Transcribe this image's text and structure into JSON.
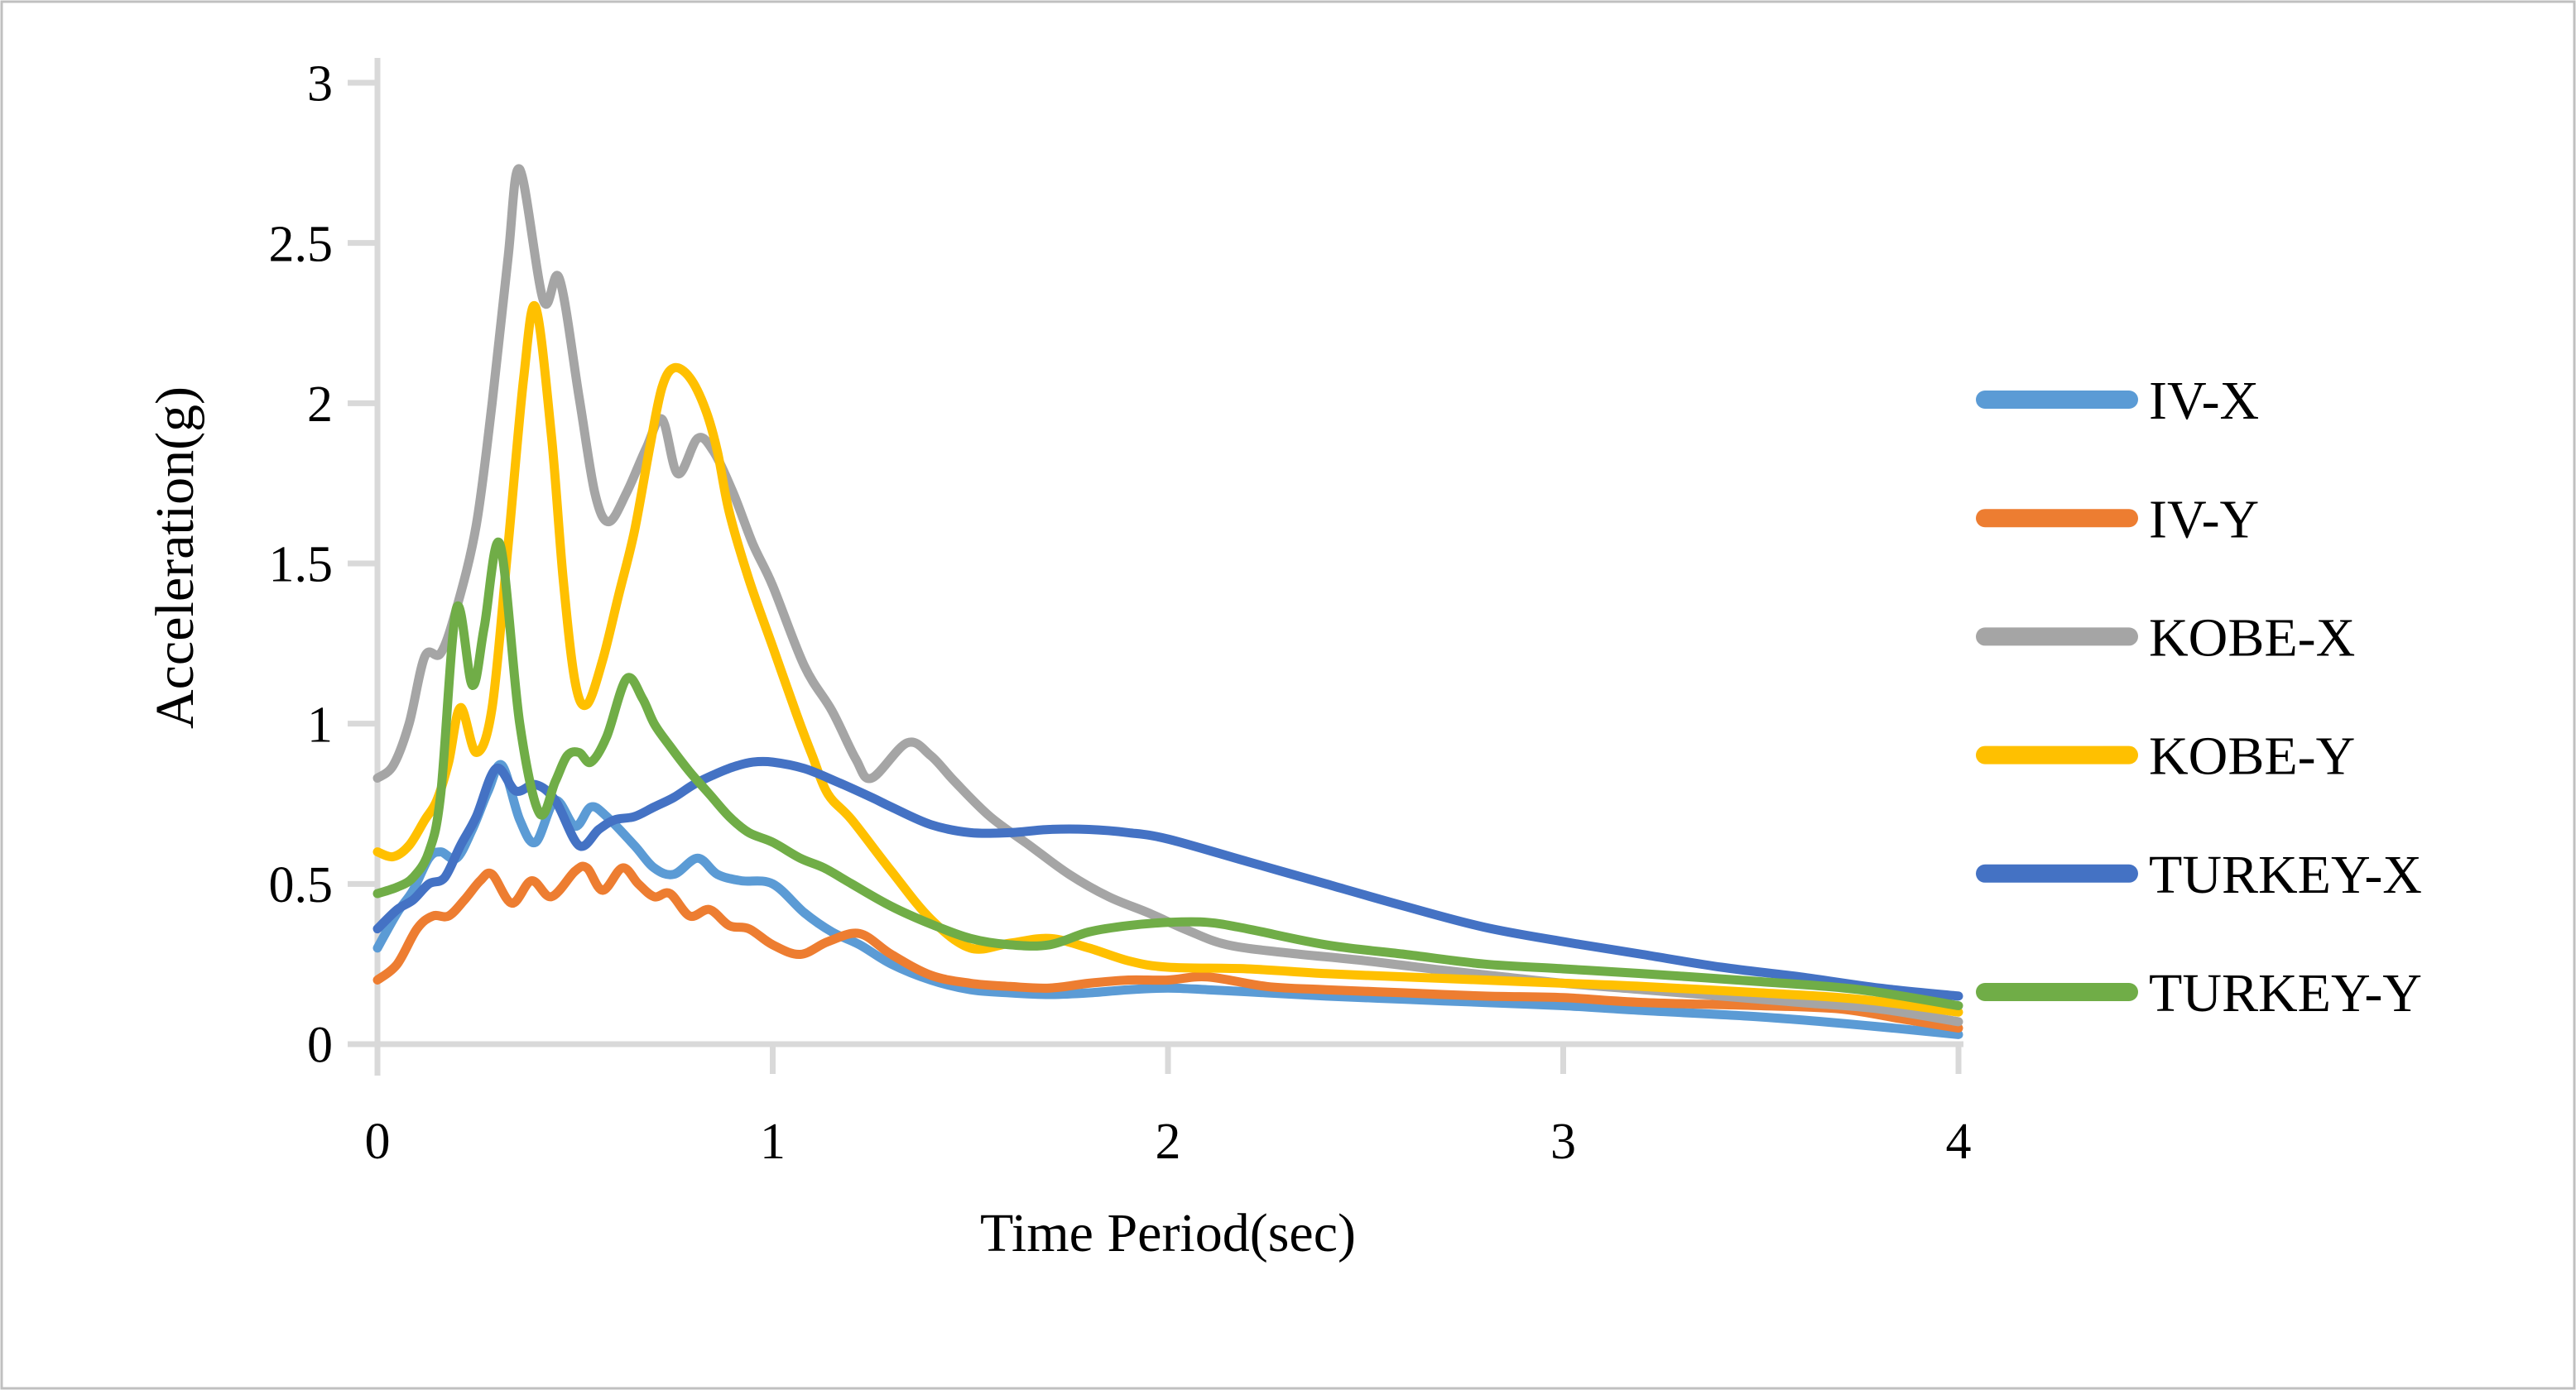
{
  "chart_data": {
    "type": "line",
    "title": "",
    "xlabel": "Time Period(sec)",
    "ylabel": "Acceleration(g)",
    "xlim": [
      0,
      4
    ],
    "ylim": [
      0,
      3
    ],
    "xticks": [
      0,
      1,
      2,
      3,
      4
    ],
    "yticks": [
      0,
      0.5,
      1,
      1.5,
      2,
      2.5,
      3
    ],
    "grid": false,
    "legend_position": "right-middle",
    "axis_color": "#D9D9D9",
    "text_color": "#000000",
    "series": [
      {
        "name": "IV-X",
        "color": "#5B9BD5",
        "points": [
          [
            0,
            0.3
          ],
          [
            0.05,
            0.41
          ],
          [
            0.09,
            0.48
          ],
          [
            0.13,
            0.58
          ],
          [
            0.16,
            0.6
          ],
          [
            0.2,
            0.58
          ],
          [
            0.24,
            0.67
          ],
          [
            0.28,
            0.79
          ],
          [
            0.315,
            0.87
          ],
          [
            0.36,
            0.7
          ],
          [
            0.4,
            0.63
          ],
          [
            0.45,
            0.76
          ],
          [
            0.5,
            0.68
          ],
          [
            0.54,
            0.74
          ],
          [
            0.58,
            0.71
          ],
          [
            0.65,
            0.62
          ],
          [
            0.7,
            0.55
          ],
          [
            0.75,
            0.53
          ],
          [
            0.81,
            0.58
          ],
          [
            0.86,
            0.53
          ],
          [
            0.92,
            0.51
          ],
          [
            1.0,
            0.5
          ],
          [
            1.08,
            0.41
          ],
          [
            1.15,
            0.35
          ],
          [
            1.22,
            0.31
          ],
          [
            1.3,
            0.25
          ],
          [
            1.4,
            0.2
          ],
          [
            1.5,
            0.17
          ],
          [
            1.6,
            0.16
          ],
          [
            1.7,
            0.155
          ],
          [
            1.8,
            0.16
          ],
          [
            1.9,
            0.17
          ],
          [
            2.0,
            0.175
          ],
          [
            2.1,
            0.17
          ],
          [
            2.25,
            0.16
          ],
          [
            2.4,
            0.15
          ],
          [
            2.6,
            0.14
          ],
          [
            2.8,
            0.13
          ],
          [
            3.0,
            0.12
          ],
          [
            3.2,
            0.105
          ],
          [
            3.5,
            0.085
          ],
          [
            3.75,
            0.06
          ],
          [
            4.0,
            0.03
          ]
        ]
      },
      {
        "name": "IV-Y",
        "color": "#ED7D31",
        "points": [
          [
            0,
            0.2
          ],
          [
            0.05,
            0.25
          ],
          [
            0.1,
            0.36
          ],
          [
            0.14,
            0.4
          ],
          [
            0.18,
            0.4
          ],
          [
            0.22,
            0.45
          ],
          [
            0.26,
            0.51
          ],
          [
            0.29,
            0.53
          ],
          [
            0.34,
            0.44
          ],
          [
            0.39,
            0.51
          ],
          [
            0.44,
            0.46
          ],
          [
            0.5,
            0.54
          ],
          [
            0.53,
            0.55
          ],
          [
            0.57,
            0.48
          ],
          [
            0.62,
            0.55
          ],
          [
            0.66,
            0.5
          ],
          [
            0.7,
            0.46
          ],
          [
            0.74,
            0.47
          ],
          [
            0.79,
            0.4
          ],
          [
            0.84,
            0.42
          ],
          [
            0.89,
            0.37
          ],
          [
            0.94,
            0.36
          ],
          [
            1.0,
            0.31
          ],
          [
            1.07,
            0.28
          ],
          [
            1.14,
            0.32
          ],
          [
            1.22,
            0.345
          ],
          [
            1.3,
            0.28
          ],
          [
            1.4,
            0.215
          ],
          [
            1.5,
            0.19
          ],
          [
            1.6,
            0.18
          ],
          [
            1.7,
            0.175
          ],
          [
            1.8,
            0.19
          ],
          [
            1.9,
            0.2
          ],
          [
            2.0,
            0.2
          ],
          [
            2.1,
            0.21
          ],
          [
            2.25,
            0.18
          ],
          [
            2.4,
            0.17
          ],
          [
            2.6,
            0.16
          ],
          [
            2.8,
            0.15
          ],
          [
            3.0,
            0.145
          ],
          [
            3.2,
            0.13
          ],
          [
            3.5,
            0.12
          ],
          [
            3.7,
            0.11
          ],
          [
            3.85,
            0.08
          ],
          [
            4.0,
            0.05
          ]
        ]
      },
      {
        "name": "KOBE-X",
        "color": "#A5A5A5",
        "points": [
          [
            0,
            0.83
          ],
          [
            0.04,
            0.87
          ],
          [
            0.08,
            1.0
          ],
          [
            0.12,
            1.21
          ],
          [
            0.16,
            1.22
          ],
          [
            0.2,
            1.36
          ],
          [
            0.25,
            1.62
          ],
          [
            0.29,
            2.0
          ],
          [
            0.33,
            2.45
          ],
          [
            0.36,
            2.73
          ],
          [
            0.42,
            2.32
          ],
          [
            0.46,
            2.39
          ],
          [
            0.51,
            2.02
          ],
          [
            0.55,
            1.72
          ],
          [
            0.585,
            1.63
          ],
          [
            0.63,
            1.72
          ],
          [
            0.68,
            1.86
          ],
          [
            0.72,
            1.95
          ],
          [
            0.76,
            1.78
          ],
          [
            0.81,
            1.89
          ],
          [
            0.85,
            1.85
          ],
          [
            0.9,
            1.72
          ],
          [
            0.95,
            1.56
          ],
          [
            1.0,
            1.43
          ],
          [
            1.08,
            1.18
          ],
          [
            1.15,
            1.04
          ],
          [
            1.21,
            0.89
          ],
          [
            1.25,
            0.83
          ],
          [
            1.34,
            0.94
          ],
          [
            1.4,
            0.9
          ],
          [
            1.46,
            0.82
          ],
          [
            1.55,
            0.71
          ],
          [
            1.65,
            0.62
          ],
          [
            1.75,
            0.53
          ],
          [
            1.85,
            0.46
          ],
          [
            1.95,
            0.41
          ],
          [
            2.05,
            0.355
          ],
          [
            2.15,
            0.31
          ],
          [
            2.3,
            0.285
          ],
          [
            2.5,
            0.26
          ],
          [
            2.7,
            0.23
          ],
          [
            2.85,
            0.21
          ],
          [
            3.0,
            0.19
          ],
          [
            3.2,
            0.17
          ],
          [
            3.4,
            0.15
          ],
          [
            3.6,
            0.13
          ],
          [
            3.8,
            0.11
          ],
          [
            4.0,
            0.07
          ]
        ]
      },
      {
        "name": "KOBE-Y",
        "color": "#FFC000",
        "points": [
          [
            0,
            0.6
          ],
          [
            0.04,
            0.585
          ],
          [
            0.08,
            0.62
          ],
          [
            0.12,
            0.7
          ],
          [
            0.15,
            0.76
          ],
          [
            0.18,
            0.88
          ],
          [
            0.21,
            1.05
          ],
          [
            0.25,
            0.91
          ],
          [
            0.29,
            1.05
          ],
          [
            0.33,
            1.55
          ],
          [
            0.37,
            2.08
          ],
          [
            0.4,
            2.3
          ],
          [
            0.44,
            1.9
          ],
          [
            0.47,
            1.45
          ],
          [
            0.5,
            1.13
          ],
          [
            0.53,
            1.06
          ],
          [
            0.57,
            1.2
          ],
          [
            0.61,
            1.4
          ],
          [
            0.65,
            1.6
          ],
          [
            0.69,
            1.87
          ],
          [
            0.72,
            2.05
          ],
          [
            0.75,
            2.11
          ],
          [
            0.79,
            2.08
          ],
          [
            0.83,
            1.98
          ],
          [
            0.86,
            1.85
          ],
          [
            0.89,
            1.66
          ],
          [
            0.94,
            1.45
          ],
          [
            1.0,
            1.24
          ],
          [
            1.06,
            1.03
          ],
          [
            1.1,
            0.9
          ],
          [
            1.14,
            0.78
          ],
          [
            1.2,
            0.7
          ],
          [
            1.3,
            0.54
          ],
          [
            1.4,
            0.39
          ],
          [
            1.5,
            0.3
          ],
          [
            1.6,
            0.315
          ],
          [
            1.7,
            0.33
          ],
          [
            1.8,
            0.3
          ],
          [
            1.9,
            0.26
          ],
          [
            2.0,
            0.24
          ],
          [
            2.2,
            0.235
          ],
          [
            2.4,
            0.22
          ],
          [
            2.6,
            0.21
          ],
          [
            2.8,
            0.2
          ],
          [
            3.0,
            0.19
          ],
          [
            3.2,
            0.18
          ],
          [
            3.5,
            0.16
          ],
          [
            3.75,
            0.14
          ],
          [
            4.0,
            0.1
          ]
        ]
      },
      {
        "name": "TURKEY-X",
        "color": "#4472C4",
        "points": [
          [
            0,
            0.36
          ],
          [
            0.05,
            0.42
          ],
          [
            0.09,
            0.45
          ],
          [
            0.13,
            0.5
          ],
          [
            0.17,
            0.52
          ],
          [
            0.21,
            0.62
          ],
          [
            0.25,
            0.71
          ],
          [
            0.3,
            0.86
          ],
          [
            0.35,
            0.79
          ],
          [
            0.4,
            0.81
          ],
          [
            0.45,
            0.76
          ],
          [
            0.51,
            0.62
          ],
          [
            0.56,
            0.67
          ],
          [
            0.6,
            0.7
          ],
          [
            0.65,
            0.71
          ],
          [
            0.7,
            0.74
          ],
          [
            0.75,
            0.77
          ],
          [
            0.8,
            0.81
          ],
          [
            0.85,
            0.84
          ],
          [
            0.9,
            0.865
          ],
          [
            0.95,
            0.88
          ],
          [
            1.0,
            0.88
          ],
          [
            1.08,
            0.86
          ],
          [
            1.16,
            0.82
          ],
          [
            1.25,
            0.77
          ],
          [
            1.3,
            0.74
          ],
          [
            1.4,
            0.685
          ],
          [
            1.5,
            0.66
          ],
          [
            1.6,
            0.66
          ],
          [
            1.7,
            0.67
          ],
          [
            1.8,
            0.67
          ],
          [
            1.9,
            0.66
          ],
          [
            2.0,
            0.64
          ],
          [
            2.2,
            0.57
          ],
          [
            2.4,
            0.5
          ],
          [
            2.6,
            0.43
          ],
          [
            2.8,
            0.365
          ],
          [
            3.0,
            0.32
          ],
          [
            3.2,
            0.28
          ],
          [
            3.4,
            0.24
          ],
          [
            3.6,
            0.21
          ],
          [
            3.8,
            0.175
          ],
          [
            4.0,
            0.15
          ]
        ]
      },
      {
        "name": "TURKEY-Y",
        "color": "#70AD47",
        "points": [
          [
            0,
            0.47
          ],
          [
            0.05,
            0.49
          ],
          [
            0.09,
            0.52
          ],
          [
            0.13,
            0.6
          ],
          [
            0.16,
            0.78
          ],
          [
            0.2,
            1.36
          ],
          [
            0.24,
            1.12
          ],
          [
            0.27,
            1.3
          ],
          [
            0.31,
            1.56
          ],
          [
            0.36,
            1.0
          ],
          [
            0.41,
            0.72
          ],
          [
            0.45,
            0.82
          ],
          [
            0.48,
            0.9
          ],
          [
            0.51,
            0.91
          ],
          [
            0.54,
            0.88
          ],
          [
            0.58,
            0.96
          ],
          [
            0.63,
            1.14
          ],
          [
            0.67,
            1.08
          ],
          [
            0.7,
            1.0
          ],
          [
            0.74,
            0.93
          ],
          [
            0.79,
            0.85
          ],
          [
            0.84,
            0.78
          ],
          [
            0.89,
            0.71
          ],
          [
            0.94,
            0.66
          ],
          [
            1.0,
            0.63
          ],
          [
            1.07,
            0.58
          ],
          [
            1.13,
            0.55
          ],
          [
            1.2,
            0.5
          ],
          [
            1.3,
            0.43
          ],
          [
            1.4,
            0.375
          ],
          [
            1.5,
            0.33
          ],
          [
            1.6,
            0.31
          ],
          [
            1.7,
            0.31
          ],
          [
            1.8,
            0.35
          ],
          [
            1.9,
            0.37
          ],
          [
            2.0,
            0.38
          ],
          [
            2.1,
            0.38
          ],
          [
            2.2,
            0.36
          ],
          [
            2.4,
            0.31
          ],
          [
            2.6,
            0.28
          ],
          [
            2.8,
            0.25
          ],
          [
            3.0,
            0.235
          ],
          [
            3.2,
            0.22
          ],
          [
            3.5,
            0.195
          ],
          [
            3.75,
            0.17
          ],
          [
            4.0,
            0.12
          ]
        ]
      }
    ]
  }
}
